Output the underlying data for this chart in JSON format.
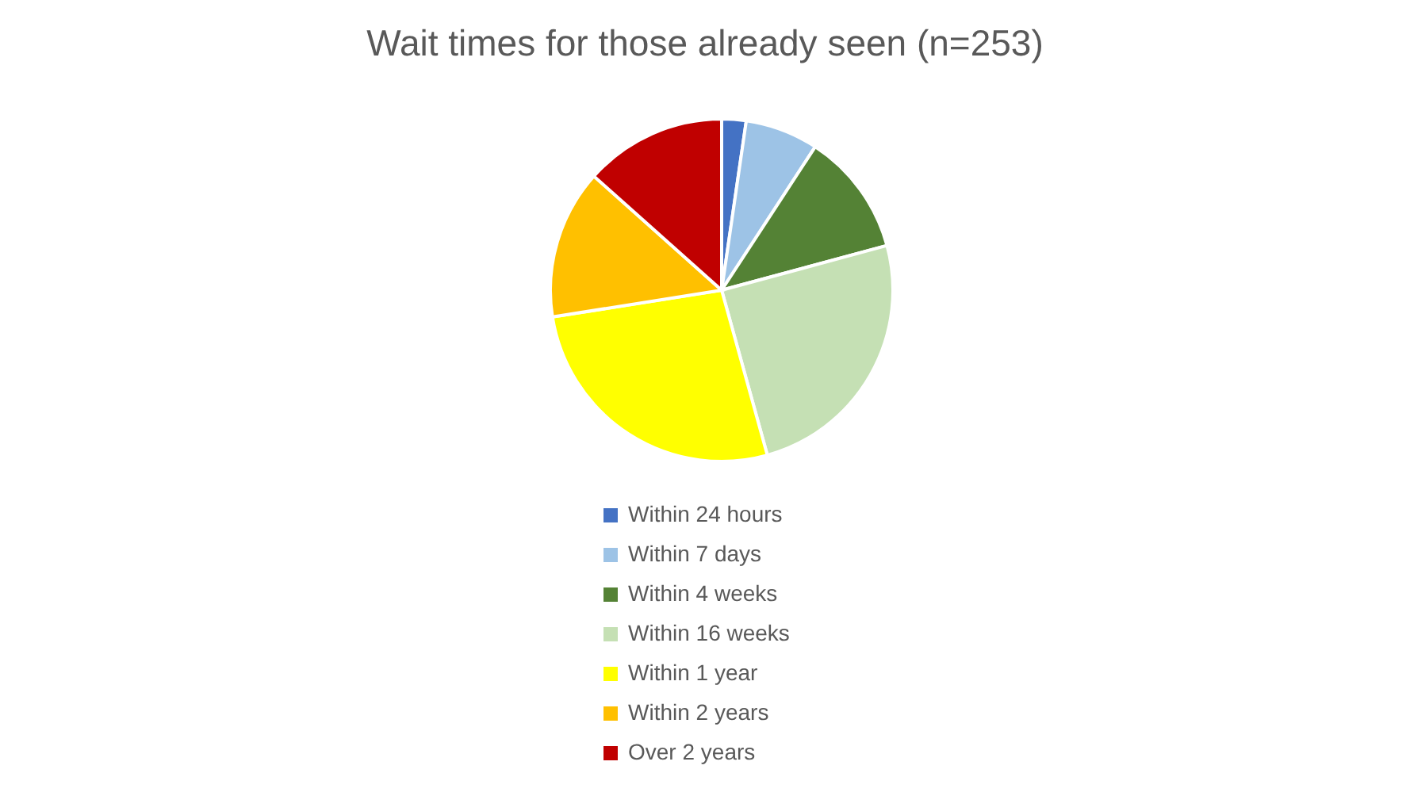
{
  "chart_data": {
    "type": "pie",
    "title": "Wait times for those already seen (n=253)",
    "categories": [
      "Within 24 hours",
      "Within 7 days",
      "Within 4 weeks",
      "Within 16 weeks",
      "Within 1 year",
      "Within 2 years",
      "Over 2 years"
    ],
    "values": [
      2.3,
      6.9,
      11.6,
      24.9,
      26.8,
      14.1,
      13.4
    ],
    "colors": [
      "#4472c4",
      "#9dc3e6",
      "#548235",
      "#c5e0b4",
      "#ffff00",
      "#ffc000",
      "#c00000"
    ],
    "legend": "bottom"
  }
}
